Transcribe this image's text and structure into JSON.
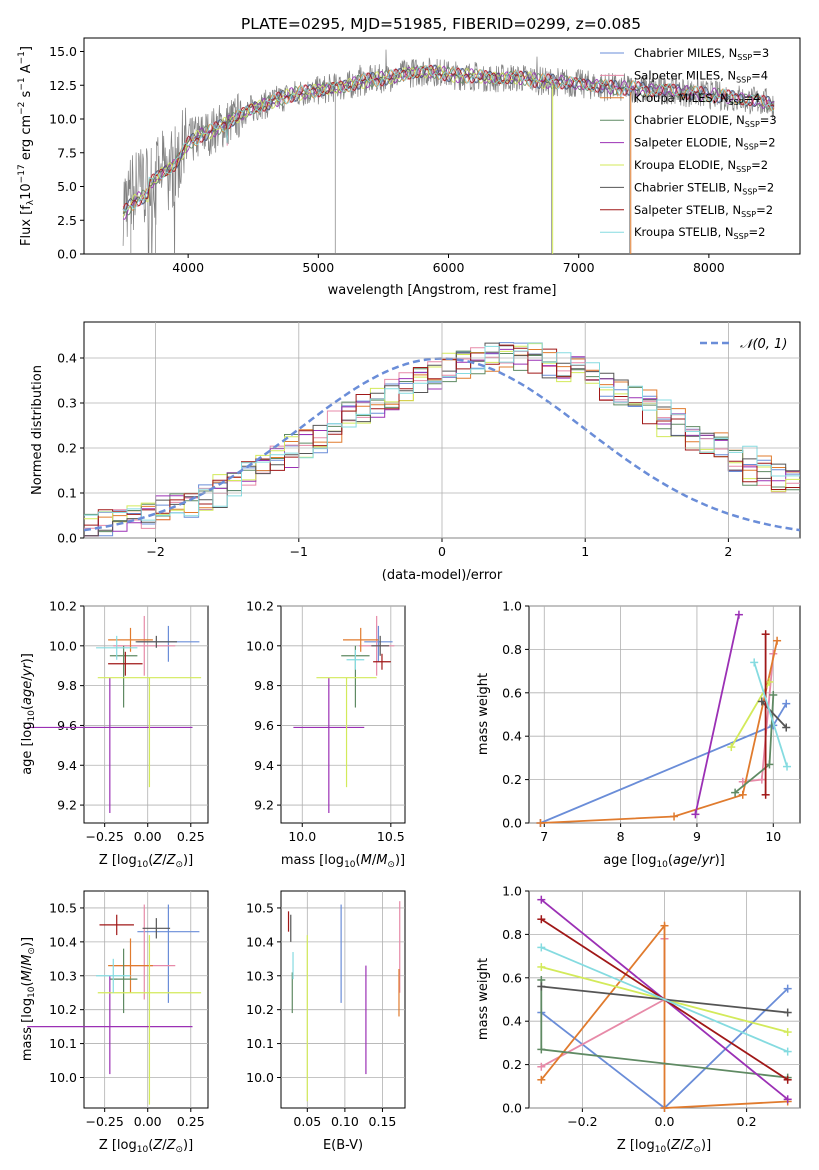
{
  "title": "PLATE=0295, MJD=51985, FIBERID=0299, z=0.085",
  "colors": {
    "chabrier_miles": "#6a8dd8",
    "salpeter_miles": "#e78aa8",
    "kroupa_miles": "#e07b2e",
    "chabrier_elodie": "#5f8a63",
    "salpeter_elodie": "#9b30b5",
    "kroupa_elodie": "#d3ea5a",
    "chabrier_stelib": "#555555",
    "salpeter_stelib": "#a01818",
    "kroupa_stelib": "#85dbe0",
    "gauss": "#6a8dd8",
    "grid": "#b0b0b0"
  },
  "chart_data": [
    {
      "id": "spectrum",
      "type": "line",
      "xlabel": "wavelength [Angstrom, rest frame]",
      "ylabel": "Flux [f",
      "xlim": [
        3200,
        8700
      ],
      "ylim": [
        0,
        16
      ],
      "xticks": [
        "4000",
        "5000",
        "6000",
        "7000",
        "8000"
      ],
      "yticks": [
        "0.0",
        "2.5",
        "5.0",
        "7.5",
        "10.0",
        "12.5",
        "15.0"
      ],
      "grid": false,
      "legend_position": "right",
      "x": [
        3500,
        3600,
        3700,
        3800,
        3900,
        4000,
        4100,
        4200,
        4300,
        4400,
        4500,
        4600,
        4700,
        4800,
        4900,
        5000,
        5100,
        5200,
        5300,
        5400,
        5500,
        5600,
        5700,
        5800,
        5900,
        6000,
        6100,
        6200,
        6300,
        6400,
        6500,
        6600,
        6700,
        6800,
        6900,
        7000,
        7100,
        7200,
        7300,
        7400,
        7500,
        7600,
        7700,
        7800,
        7900,
        8000,
        8100,
        8200,
        8300,
        8400,
        8500
      ],
      "model_flux": [
        3.8,
        4.8,
        5.2,
        6.0,
        6.6,
        8.2,
        8.8,
        9.2,
        9.7,
        10.3,
        10.8,
        11.1,
        11.5,
        11.8,
        12.0,
        12.1,
        12.3,
        12.4,
        12.7,
        12.9,
        13.0,
        13.2,
        13.4,
        13.5,
        13.5,
        13.3,
        13.2,
        13.2,
        13.1,
        13.0,
        13.1,
        13.0,
        12.8,
        12.8,
        12.7,
        12.6,
        12.5,
        12.4,
        12.3,
        12.3,
        12.2,
        12.1,
        12.2,
        12.0,
        11.9,
        11.8,
        11.7,
        11.6,
        11.4,
        11.3,
        11.1
      ],
      "series": [
        {
          "name": "Chabrier MILES, N",
          "sub": "SSP",
          "eq": "=3",
          "key": "chabrier_miles"
        },
        {
          "name": "Salpeter MILES, N",
          "sub": "SSP",
          "eq": "=4",
          "key": "salpeter_miles"
        },
        {
          "name": "Kroupa MILES, N",
          "sub": "SSP",
          "eq": "=4",
          "key": "kroupa_miles"
        },
        {
          "name": "Chabrier ELODIE, N",
          "sub": "SSP",
          "eq": "=3",
          "key": "chabrier_elodie"
        },
        {
          "name": "Salpeter ELODIE, N",
          "sub": "SSP",
          "eq": "=2",
          "key": "salpeter_elodie"
        },
        {
          "name": "Kroupa ELODIE, N",
          "sub": "SSP",
          "eq": "=2",
          "key": "kroupa_elodie"
        },
        {
          "name": "Chabrier STELIB, N",
          "sub": "SSP",
          "eq": "=2",
          "key": "chabrier_stelib"
        },
        {
          "name": "Salpeter STELIB, N",
          "sub": "SSP",
          "eq": "=2",
          "key": "salpeter_stelib"
        },
        {
          "name": "Kroupa STELIB, N",
          "sub": "SSP",
          "eq": "=2",
          "key": "kroupa_stelib"
        }
      ]
    },
    {
      "id": "residuals",
      "type": "step",
      "xlabel": "(data-model)/error",
      "ylabel": "Normed distribution",
      "xlim": [
        -2.5,
        2.5
      ],
      "ylim": [
        0,
        0.48
      ],
      "xticks": [
        "−2",
        "−1",
        "0",
        "1",
        "2"
      ],
      "yticks": [
        "0.0",
        "0.1",
        "0.2",
        "0.3",
        "0.4"
      ],
      "grid": true,
      "legend": "𝒩(0, 1)",
      "bin_width": 0.1,
      "bin_start": -2.5,
      "hist": [
        [
          0.02,
          0.03,
          0.04,
          0.04,
          0.05,
          0.06,
          0.06,
          0.07,
          0.09,
          0.1,
          0.12,
          0.14,
          0.15,
          0.17,
          0.19,
          0.21,
          0.22,
          0.24,
          0.26,
          0.28,
          0.3,
          0.31,
          0.33,
          0.34,
          0.36,
          0.37,
          0.38,
          0.39,
          0.4,
          0.4,
          0.41,
          0.4,
          0.39,
          0.38,
          0.37,
          0.36,
          0.35,
          0.33,
          0.31,
          0.3,
          0.28,
          0.26,
          0.24,
          0.22,
          0.2,
          0.18,
          0.17,
          0.15,
          0.13,
          0.12
        ],
        [
          0.03,
          0.04,
          0.04,
          0.05,
          0.05,
          0.06,
          0.07,
          0.08,
          0.09,
          0.11,
          0.12,
          0.14,
          0.16,
          0.18,
          0.2,
          0.21,
          0.23,
          0.25,
          0.27,
          0.29,
          0.31,
          0.32,
          0.34,
          0.35,
          0.37,
          0.38,
          0.39,
          0.4,
          0.41,
          0.41,
          0.4,
          0.4,
          0.39,
          0.38,
          0.36,
          0.35,
          0.33,
          0.32,
          0.3,
          0.28,
          0.26,
          0.25,
          0.23,
          0.21,
          0.19,
          0.17,
          0.15,
          0.14,
          0.12,
          0.11
        ]
      ]
    },
    {
      "id": "age_vs_Z",
      "type": "errorbar",
      "xlabel": "Z [log",
      "ylabel": "age  [log",
      "xlim": [
        -0.37,
        0.35
      ],
      "ylim": [
        9.11,
        10.2
      ],
      "xticks": [
        "−0.25",
        "0.00",
        "0.25"
      ],
      "yticks": [
        "9.2",
        "9.4",
        "9.6",
        "9.8",
        "10.0",
        "10.2"
      ],
      "points": [
        {
          "key": "chabrier_miles",
          "x": 0.12,
          "y": 10.02,
          "xerr": 0.18,
          "yerr_lo": 0.1,
          "yerr_hi": 0.08
        },
        {
          "key": "salpeter_miles",
          "x": -0.02,
          "y": 10.0,
          "xerr": 0.18,
          "yerr_lo": 0.15,
          "yerr_hi": 0.15
        },
        {
          "key": "kroupa_miles",
          "x": -0.1,
          "y": 10.03,
          "xerr": 0.13,
          "yerr_lo": 0.06,
          "yerr_hi": 0.06
        },
        {
          "key": "chabrier_elodie",
          "x": -0.14,
          "y": 9.95,
          "xerr": 0.08,
          "yerr_lo": 0.26,
          "yerr_hi": 0.05
        },
        {
          "key": "salpeter_elodie",
          "x": -0.22,
          "y": 9.59,
          "xerr": 0.48,
          "yerr_lo": 0.43,
          "yerr_hi": 0.25
        },
        {
          "key": "kroupa_elodie",
          "x": 0.01,
          "y": 9.84,
          "xerr": 0.3,
          "yerr_lo": 0.55,
          "yerr_hi": 0.0
        },
        {
          "key": "chabrier_stelib",
          "x": 0.05,
          "y": 10.02,
          "xerr": 0.12,
          "yerr_lo": 0.03,
          "yerr_hi": 0.03
        },
        {
          "key": "salpeter_stelib",
          "x": -0.13,
          "y": 9.91,
          "xerr": 0.1,
          "yerr_lo": 0.06,
          "yerr_hi": 0.06
        },
        {
          "key": "kroupa_stelib",
          "x": -0.18,
          "y": 9.99,
          "xerr": 0.12,
          "yerr_lo": 0.06,
          "yerr_hi": 0.06
        }
      ]
    },
    {
      "id": "age_vs_mass",
      "type": "errorbar",
      "xlabel": "mass [log",
      "xlim": [
        9.88,
        10.58
      ],
      "ylim": [
        9.11,
        10.2
      ],
      "xticks": [
        "10.0",
        "10.5"
      ],
      "yticks": [
        "9.2",
        "9.4",
        "9.6",
        "9.8",
        "10.0",
        "10.2"
      ],
      "points": [
        {
          "key": "chabrier_miles",
          "x": 10.43,
          "y": 10.02,
          "xerr": 0.08,
          "yerr_lo": 0.1,
          "yerr_hi": 0.08
        },
        {
          "key": "salpeter_miles",
          "x": 10.42,
          "y": 10.0,
          "xerr": 0.1,
          "yerr_lo": 0.15,
          "yerr_hi": 0.15
        },
        {
          "key": "kroupa_miles",
          "x": 10.33,
          "y": 10.03,
          "xerr": 0.1,
          "yerr_lo": 0.06,
          "yerr_hi": 0.06
        },
        {
          "key": "chabrier_elodie",
          "x": 10.3,
          "y": 9.95,
          "xerr": 0.08,
          "yerr_lo": 0.26,
          "yerr_hi": 0.05
        },
        {
          "key": "salpeter_elodie",
          "x": 10.15,
          "y": 9.59,
          "xerr": 0.2,
          "yerr_lo": 0.43,
          "yerr_hi": 0.25
        },
        {
          "key": "kroupa_elodie",
          "x": 10.25,
          "y": 9.84,
          "xerr": 0.17,
          "yerr_lo": 0.55,
          "yerr_hi": 0.0
        },
        {
          "key": "chabrier_stelib",
          "x": 10.44,
          "y": 10.0,
          "xerr": 0.05,
          "yerr_lo": 0.05,
          "yerr_hi": 0.05
        },
        {
          "key": "salpeter_stelib",
          "x": 10.45,
          "y": 9.92,
          "xerr": 0.05,
          "yerr_lo": 0.04,
          "yerr_hi": 0.04
        },
        {
          "key": "kroupa_stelib",
          "x": 10.3,
          "y": 9.93,
          "xerr": 0.05,
          "yerr_lo": 0.05,
          "yerr_hi": 0.05
        }
      ]
    },
    {
      "id": "weight_vs_age",
      "type": "line",
      "xlabel": "age  [log",
      "ylabel": "mass weight",
      "xlim": [
        6.8,
        10.35
      ],
      "ylim": [
        0,
        1
      ],
      "xticks": [
        "7",
        "8",
        "9",
        "10"
      ],
      "yticks": [
        "0.0",
        "0.2",
        "0.4",
        "0.6",
        "0.8",
        "1.0"
      ],
      "grid": true,
      "series": [
        {
          "key": "chabrier_miles",
          "x": [
            6.95,
            10.0,
            10.17
          ],
          "y": [
            0.0,
            0.45,
            0.55
          ]
        },
        {
          "key": "salpeter_miles",
          "x": [
            9.6,
            9.85,
            10.0
          ],
          "y": [
            0.19,
            0.2,
            0.78
          ]
        },
        {
          "key": "kroupa_miles",
          "x": [
            6.95,
            8.7,
            9.6,
            10.05
          ],
          "y": [
            0.0,
            0.03,
            0.13,
            0.84
          ]
        },
        {
          "key": "chabrier_elodie",
          "x": [
            9.5,
            9.95,
            10.0
          ],
          "y": [
            0.14,
            0.27,
            0.59
          ]
        },
        {
          "key": "salpeter_elodie",
          "x": [
            8.98,
            9.55
          ],
          "y": [
            0.04,
            0.96
          ]
        },
        {
          "key": "kroupa_elodie",
          "x": [
            9.45,
            9.95
          ],
          "y": [
            0.35,
            0.65
          ]
        },
        {
          "key": "chabrier_stelib",
          "x": [
            9.85,
            10.17
          ],
          "y": [
            0.56,
            0.44
          ]
        },
        {
          "key": "salpeter_stelib",
          "x": [
            9.9,
            9.9
          ],
          "y": [
            0.13,
            0.87
          ]
        },
        {
          "key": "kroupa_stelib",
          "x": [
            9.75,
            10.18
          ],
          "y": [
            0.74,
            0.26
          ]
        }
      ]
    },
    {
      "id": "mass_vs_Z",
      "type": "errorbar",
      "xlabel": "Z [log",
      "ylabel": "mass [log",
      "xlim": [
        -0.37,
        0.35
      ],
      "ylim": [
        9.91,
        10.55
      ],
      "xticks": [
        "−0.25",
        "0.00",
        "0.25"
      ],
      "yticks": [
        "10.0",
        "10.1",
        "10.2",
        "10.3",
        "10.4",
        "10.5"
      ],
      "points": [
        {
          "key": "chabrier_miles",
          "x": 0.12,
          "y": 10.43,
          "xerr": 0.18,
          "yerr_lo": 0.21,
          "yerr_hi": 0.08
        },
        {
          "key": "salpeter_miles",
          "x": -0.02,
          "y": 10.33,
          "xerr": 0.18,
          "yerr_lo": 0.1,
          "yerr_hi": 0.18
        },
        {
          "key": "kroupa_miles",
          "x": -0.1,
          "y": 10.33,
          "xerr": 0.13,
          "yerr_lo": 0.08,
          "yerr_hi": 0.08
        },
        {
          "key": "chabrier_elodie",
          "x": -0.14,
          "y": 10.29,
          "xerr": 0.08,
          "yerr_lo": 0.1,
          "yerr_hi": 0.09
        },
        {
          "key": "salpeter_elodie",
          "x": -0.22,
          "y": 10.15,
          "xerr": 0.48,
          "yerr_lo": 0.14,
          "yerr_hi": 0.15
        },
        {
          "key": "kroupa_elodie",
          "x": 0.01,
          "y": 10.25,
          "xerr": 0.3,
          "yerr_lo": 0.33,
          "yerr_hi": 0.17
        },
        {
          "key": "chabrier_stelib",
          "x": 0.05,
          "y": 10.44,
          "xerr": 0.08,
          "yerr_lo": 0.03,
          "yerr_hi": 0.03
        },
        {
          "key": "salpeter_stelib",
          "x": -0.18,
          "y": 10.45,
          "xerr": 0.1,
          "yerr_lo": 0.03,
          "yerr_hi": 0.03
        },
        {
          "key": "kroupa_stelib",
          "x": -0.2,
          "y": 10.3,
          "xerr": 0.1,
          "yerr_lo": 0.05,
          "yerr_hi": 0.05
        }
      ]
    },
    {
      "id": "mass_vs_ebv",
      "type": "errorbar",
      "xlabel": "E(B-V)",
      "xlim": [
        0.015,
        0.18
      ],
      "ylim": [
        9.91,
        10.55
      ],
      "xticks": [
        "0.05",
        "0.10",
        "0.15"
      ],
      "yticks": [
        "10.0",
        "10.1",
        "10.2",
        "10.3",
        "10.4",
        "10.5"
      ],
      "points": [
        {
          "key": "chabrier_miles",
          "x": 0.095,
          "y": 10.36,
          "xerr": 0,
          "yerr_lo": 0.14,
          "yerr_hi": 0.15
        },
        {
          "key": "salpeter_miles",
          "x": 0.173,
          "y": 10.38,
          "xerr": 0,
          "yerr_lo": 0.13,
          "yerr_hi": 0.14
        },
        {
          "key": "kroupa_miles",
          "x": 0.172,
          "y": 10.25,
          "xerr": 0,
          "yerr_lo": 0.07,
          "yerr_hi": 0.07
        },
        {
          "key": "chabrier_elodie",
          "x": 0.03,
          "y": 10.25,
          "xerr": 0,
          "yerr_lo": 0.06,
          "yerr_hi": 0.06
        },
        {
          "key": "salpeter_elodie",
          "x": 0.128,
          "y": 10.17,
          "xerr": 0,
          "yerr_lo": 0.16,
          "yerr_hi": 0.16
        },
        {
          "key": "kroupa_elodie",
          "x": 0.05,
          "y": 10.17,
          "xerr": 0,
          "yerr_lo": 0.24,
          "yerr_hi": 0.25
        },
        {
          "key": "chabrier_stelib",
          "x": 0.028,
          "y": 10.44,
          "xerr": 0,
          "yerr_lo": 0.04,
          "yerr_hi": 0.04
        },
        {
          "key": "salpeter_stelib",
          "x": 0.025,
          "y": 10.46,
          "xerr": 0,
          "yerr_lo": 0.03,
          "yerr_hi": 0.03
        },
        {
          "key": "kroupa_stelib",
          "x": 0.031,
          "y": 10.33,
          "xerr": 0,
          "yerr_lo": 0.04,
          "yerr_hi": 0.04
        }
      ]
    },
    {
      "id": "weight_vs_Z",
      "type": "line",
      "xlabel": "Z [log",
      "ylabel": "mass weight",
      "xlim": [
        -0.33,
        0.33
      ],
      "ylim": [
        0,
        1
      ],
      "xticks": [
        "−0.2",
        "0.0",
        "0.2"
      ],
      "yticks": [
        "0.0",
        "0.2",
        "0.4",
        "0.6",
        "0.8",
        "1.0"
      ],
      "grid": true,
      "series": [
        {
          "key": "chabrier_miles",
          "x": [
            -0.3,
            0.0,
            0.3
          ],
          "y": [
            0.44,
            0.0,
            0.55
          ]
        },
        {
          "key": "salpeter_miles",
          "x": [
            -0.3,
            0.0,
            0.0
          ],
          "y": [
            0.19,
            0.5,
            0.78
          ]
        },
        {
          "key": "kroupa_miles",
          "x": [
            -0.3,
            0.0,
            0.0,
            0.3
          ],
          "y": [
            0.13,
            0.84,
            0.0,
            0.03
          ]
        },
        {
          "key": "chabrier_elodie",
          "x": [
            -0.3,
            -0.3,
            0.3
          ],
          "y": [
            0.59,
            0.27,
            0.14
          ]
        },
        {
          "key": "salpeter_elodie",
          "x": [
            -0.3,
            0.3
          ],
          "y": [
            0.96,
            0.04
          ]
        },
        {
          "key": "kroupa_elodie",
          "x": [
            -0.3,
            0.3
          ],
          "y": [
            0.65,
            0.35
          ]
        },
        {
          "key": "chabrier_stelib",
          "x": [
            -0.3,
            0.3
          ],
          "y": [
            0.56,
            0.44
          ]
        },
        {
          "key": "salpeter_stelib",
          "x": [
            -0.3,
            0.3
          ],
          "y": [
            0.87,
            0.13
          ]
        },
        {
          "key": "kroupa_stelib",
          "x": [
            -0.3,
            0.3
          ],
          "y": [
            0.74,
            0.26
          ]
        }
      ]
    }
  ]
}
